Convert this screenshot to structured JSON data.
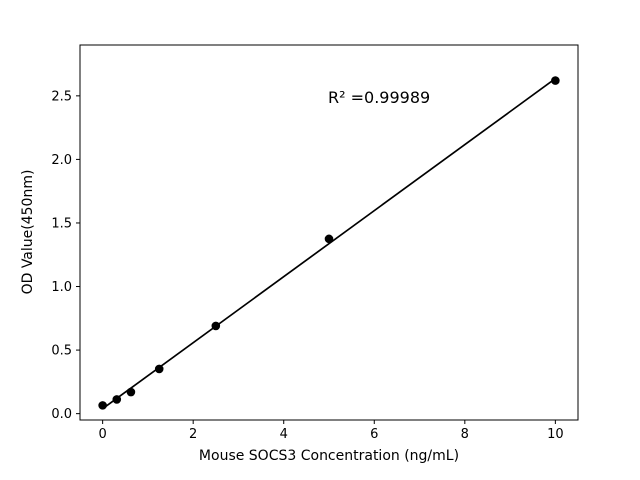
{
  "figure": {
    "background": "#ffffff",
    "foreground": "#000000"
  },
  "chart_data": {
    "type": "scatter",
    "title": "",
    "xlabel": "Mouse SOCS3 Concentration (ng/mL)",
    "ylabel": "OD Value(450nm)",
    "annotation": "R² =0.99989",
    "x": [
      0,
      0.3125,
      0.625,
      1.25,
      2.5,
      5,
      10
    ],
    "y": [
      0.065,
      0.112,
      0.17,
      0.352,
      0.69,
      1.375,
      2.62
    ],
    "fit_line": true,
    "xlim": [
      -0.5,
      10.5
    ],
    "ylim": [
      -0.05,
      2.9
    ],
    "xtick_values": [
      0,
      2,
      4,
      6,
      8,
      10
    ],
    "xtick_labels": [
      "0",
      "2",
      "4",
      "6",
      "8",
      "10"
    ],
    "ytick_values": [
      0.0,
      0.5,
      1.0,
      1.5,
      2.0,
      2.5
    ],
    "ytick_labels": [
      "0.0",
      "0.5",
      "1.0",
      "1.5",
      "2.0",
      "2.5"
    ],
    "grid": false,
    "legend": null,
    "line_color": "#000000",
    "marker_color": "#000000"
  }
}
